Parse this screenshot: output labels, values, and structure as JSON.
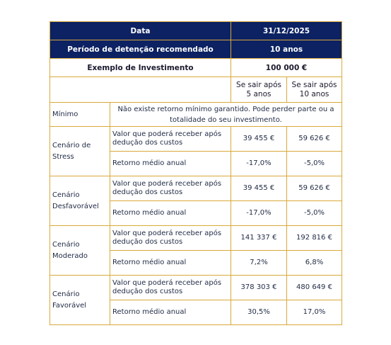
{
  "header": {
    "data_label": "Data",
    "data_value": "31/12/2025",
    "periodo_label": "Período de detenção recomendado",
    "periodo_value": "10 anos"
  },
  "investment": {
    "label": "Exemplo de Investimento",
    "value": "100 000 €"
  },
  "columns": {
    "col1_line1": "Se sair após",
    "col1_line2": "5 anos",
    "col2_line1": "Se sair após",
    "col2_line2": "10 anos"
  },
  "minimo": {
    "label": "Mínimo",
    "text_line1": "Não existe retorno mínimo garantido. Pode perder parte ou a",
    "text_line2": "totalidade do seu investimento."
  },
  "row_labels": {
    "valor_line1": "Valor que poderá receber após",
    "valor_line2": "dedução dos custos",
    "retorno": "Retorno médio anual"
  },
  "scenarios": [
    {
      "name_line1": "Cenário de",
      "name_line2": "Stress",
      "valor_5": "39 455 €",
      "valor_10": "59 626 €",
      "retorno_5": "-17,0%",
      "retorno_10": "-5,0%"
    },
    {
      "name_line1": "Cenário",
      "name_line2": "Desfavorável",
      "valor_5": "39 455 €",
      "valor_10": "59 626 €",
      "retorno_5": "-17,0%",
      "retorno_10": "-5,0%"
    },
    {
      "name_line1": "Cenário",
      "name_line2": "Moderado",
      "valor_5": "141 337 €",
      "valor_10": "192 816 €",
      "retorno_5": "7,2%",
      "retorno_10": "6,8%"
    },
    {
      "name_line1": "Cenário",
      "name_line2": "Favorável",
      "valor_5": "378 303 €",
      "valor_10": "480 649 €",
      "retorno_5": "30,5%",
      "retorno_10": "17,0%"
    }
  ]
}
